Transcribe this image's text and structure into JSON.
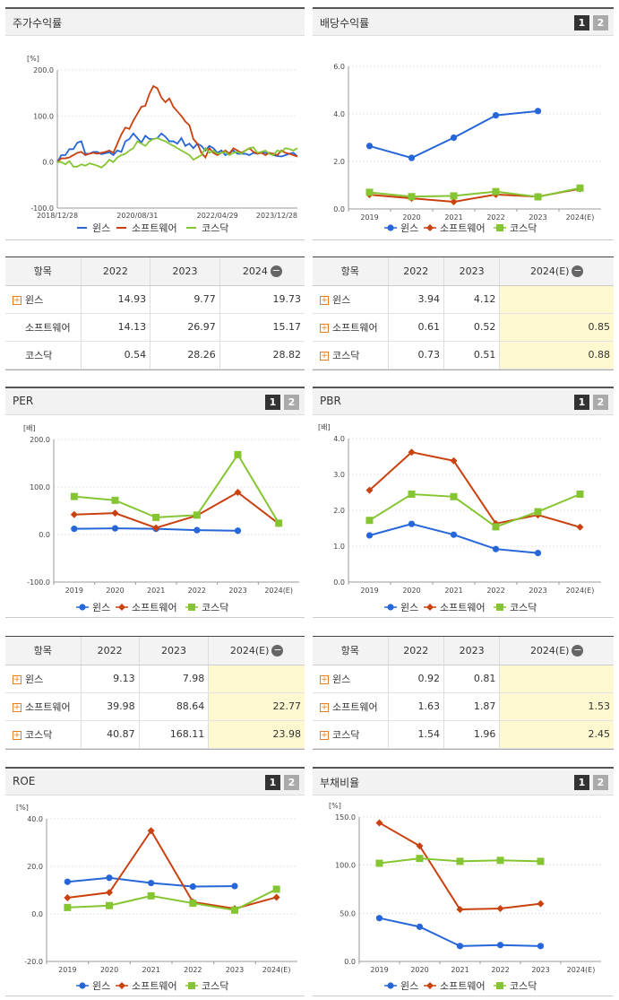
{
  "colors": {
    "wins": "#2666d9",
    "soft": "#c9410f",
    "kosdaq": "#86c532"
  },
  "legend": [
    "윈스",
    "소프트웨어",
    "코스닥"
  ],
  "charts": {
    "stock": {
      "title": "주가수익률",
      "unit": "[%]",
      "chart_data": {
        "type": "line",
        "title": "주가수익률",
        "ylabel": "[%]",
        "ylim": [
          -100,
          200
        ],
        "yticks": [
          "200.0",
          "100.0",
          "0.0",
          "-100.0"
        ],
        "xticks": [
          "2018/12/28",
          "2020/08/31",
          "2022/04/29",
          "2023/12/28"
        ],
        "series": [
          {
            "name": "윈스",
            "values": [
              0,
              15,
              15,
              28,
              28,
              42,
              45,
              18,
              18,
              22,
              22,
              17,
              19,
              21,
              15,
              25,
              22,
              45,
              50,
              62,
              52,
              42,
              57,
              50,
              50,
              52,
              62,
              55,
              45,
              45,
              40,
              52,
              35,
              40,
              30,
              40,
              35,
              25,
              35,
              30,
              20,
              25,
              15,
              20,
              25,
              18,
              18,
              18,
              15,
              20,
              18,
              22,
              20,
              18,
              15,
              13,
              12,
              15,
              18,
              20,
              12
            ]
          },
          {
            "name": "소프트웨어",
            "values": [
              0,
              8,
              8,
              10,
              15,
              20,
              22,
              15,
              18,
              20,
              18,
              20,
              22,
              25,
              20,
              40,
              60,
              75,
              72,
              90,
              105,
              120,
              122,
              148,
              165,
              160,
              140,
              130,
              138,
              120,
              110,
              100,
              88,
              80,
              50,
              40,
              20,
              10,
              30,
              20,
              15,
              20,
              25,
              18,
              30,
              25,
              20,
              25,
              30,
              22,
              18,
              20,
              15,
              20,
              18,
              15,
              25,
              20,
              18,
              15,
              12
            ]
          },
          {
            "name": "코스닥",
            "values": [
              0,
              0,
              -5,
              2,
              -10,
              -10,
              -5,
              -8,
              -3,
              -5,
              -8,
              -12,
              -5,
              5,
              0,
              10,
              15,
              18,
              25,
              30,
              45,
              40,
              35,
              45,
              50,
              52,
              48,
              45,
              40,
              35,
              30,
              25,
              20,
              15,
              5,
              10,
              15,
              30,
              20,
              25,
              18,
              20,
              22,
              15,
              20,
              22,
              18,
              25,
              30,
              32,
              20,
              22,
              25,
              18,
              15,
              25,
              22,
              30,
              28,
              25,
              30
            ]
          }
        ]
      }
    },
    "dividend": {
      "title": "배당수익률",
      "unit": "",
      "chart_data": {
        "type": "line",
        "title": "배당수익률",
        "ylim": [
          0,
          6
        ],
        "yticks": [
          "6.0",
          "4.0",
          "2.0",
          "0.0"
        ],
        "categories": [
          "2019",
          "2020",
          "2021",
          "2022",
          "2023",
          "2024(E)"
        ],
        "series": [
          {
            "name": "윈스",
            "values": [
              2.65,
              2.15,
              3.0,
              3.94,
              4.12,
              null
            ]
          },
          {
            "name": "소프트웨어",
            "values": [
              0.6,
              0.45,
              0.3,
              0.61,
              0.52,
              0.85
            ]
          },
          {
            "name": "코스닥",
            "values": [
              0.7,
              0.52,
              0.55,
              0.73,
              0.51,
              0.88
            ]
          }
        ]
      }
    },
    "per": {
      "title": "PER",
      "unit": "[배]",
      "chart_data": {
        "type": "line",
        "title": "PER",
        "ylabel": "[배]",
        "ylim": [
          -100,
          200
        ],
        "yticks": [
          "200.0",
          "100.0",
          "0.0",
          "-100.0"
        ],
        "categories": [
          "2019",
          "2020",
          "2021",
          "2022",
          "2023",
          "2024(E)"
        ],
        "series": [
          {
            "name": "윈스",
            "values": [
              12,
              13,
              12,
              9.13,
              7.98,
              null
            ]
          },
          {
            "name": "소프트웨어",
            "values": [
              42,
              45,
              14,
              39.98,
              88.64,
              22.77
            ]
          },
          {
            "name": "코스닥",
            "values": [
              80,
              72,
              36,
              40.87,
              168.11,
              23.98
            ]
          }
        ]
      }
    },
    "pbr": {
      "title": "PBR",
      "unit": "[배]",
      "chart_data": {
        "type": "line",
        "title": "PBR",
        "ylabel": "[배]",
        "ylim": [
          0,
          4
        ],
        "yticks": [
          "4.0",
          "3.0",
          "2.0",
          "1.0",
          "0.0"
        ],
        "categories": [
          "2019",
          "2020",
          "2021",
          "2022",
          "2023",
          "2024(E)"
        ],
        "series": [
          {
            "name": "윈스",
            "values": [
              1.3,
              1.62,
              1.32,
              0.92,
              0.81,
              null
            ]
          },
          {
            "name": "소프트웨어",
            "values": [
              2.56,
              3.62,
              3.38,
              1.63,
              1.87,
              1.53
            ]
          },
          {
            "name": "코스닥",
            "values": [
              1.72,
              2.45,
              2.38,
              1.54,
              1.96,
              2.45
            ]
          }
        ]
      }
    },
    "roe": {
      "title": "ROE",
      "unit": "[%]",
      "chart_data": {
        "type": "line",
        "title": "ROE",
        "ylabel": "[%]",
        "ylim": [
          -20,
          40
        ],
        "yticks": [
          "40.0",
          "20.0",
          "0.0",
          "-20.0"
        ],
        "categories": [
          "2019",
          "2020",
          "2021",
          "2022",
          "2023",
          "2024(E)"
        ],
        "series": [
          {
            "name": "윈스",
            "values": [
              13.5,
              15.2,
              13,
              11.5,
              11.7,
              null
            ]
          },
          {
            "name": "소프트웨어",
            "values": [
              6.8,
              9,
              35,
              5,
              2.2,
              7
            ]
          },
          {
            "name": "코스닥",
            "values": [
              2.7,
              3.5,
              7.6,
              4.5,
              1.6,
              10.4
            ]
          }
        ]
      }
    },
    "debt": {
      "title": "부채비율",
      "unit": "[%]",
      "chart_data": {
        "type": "line",
        "title": "부채비율",
        "ylabel": "[%]",
        "ylim": [
          0,
          150
        ],
        "yticks": [
          "150.0",
          "100.0",
          "50.0",
          "0.0"
        ],
        "categories": [
          "2019",
          "2020",
          "2021",
          "2022",
          "2023",
          "2024(E)"
        ],
        "series": [
          {
            "name": "윈스",
            "values": [
              45,
              36,
              16,
              17,
              16,
              null
            ]
          },
          {
            "name": "소프트웨어",
            "values": [
              144,
              120,
              54,
              55,
              60,
              null
            ]
          },
          {
            "name": "코스닥",
            "values": [
              102,
              107,
              104,
              105,
              104,
              null
            ]
          }
        ]
      }
    }
  },
  "tables": {
    "stock": {
      "headers": [
        "항목",
        "2022",
        "2023",
        "2024"
      ],
      "rows": [
        {
          "name": "윈스",
          "plus": true,
          "vals": [
            "14.93",
            "9.77",
            "19.73"
          ]
        },
        {
          "name": "소프트웨어",
          "plus": false,
          "vals": [
            "14.13",
            "26.97",
            "15.17"
          ]
        },
        {
          "name": "코스닥",
          "plus": false,
          "vals": [
            "0.54",
            "28.26",
            "28.82"
          ]
        }
      ]
    },
    "dividend": {
      "headers": [
        "항목",
        "2022",
        "2023",
        "2024(E)"
      ],
      "rows": [
        {
          "name": "윈스",
          "plus": true,
          "vals": [
            "3.94",
            "4.12",
            ""
          ]
        },
        {
          "name": "소프트웨어",
          "plus": true,
          "vals": [
            "0.61",
            "0.52",
            "0.85"
          ]
        },
        {
          "name": "코스닥",
          "plus": true,
          "vals": [
            "0.73",
            "0.51",
            "0.88"
          ]
        }
      ]
    },
    "per": {
      "headers": [
        "항목",
        "2022",
        "2023",
        "2024(E)"
      ],
      "rows": [
        {
          "name": "윈스",
          "plus": true,
          "vals": [
            "9.13",
            "7.98",
            ""
          ]
        },
        {
          "name": "소프트웨어",
          "plus": true,
          "vals": [
            "39.98",
            "88.64",
            "22.77"
          ]
        },
        {
          "name": "코스닥",
          "plus": true,
          "vals": [
            "40.87",
            "168.11",
            "23.98"
          ]
        }
      ]
    },
    "pbr": {
      "headers": [
        "항목",
        "2022",
        "2023",
        "2024(E)"
      ],
      "rows": [
        {
          "name": "윈스",
          "plus": true,
          "vals": [
            "0.92",
            "0.81",
            ""
          ]
        },
        {
          "name": "소프트웨어",
          "plus": true,
          "vals": [
            "1.63",
            "1.87",
            "1.53"
          ]
        },
        {
          "name": "코스닥",
          "plus": true,
          "vals": [
            "1.54",
            "1.96",
            "2.45"
          ]
        }
      ]
    }
  },
  "buttons": {
    "one": "1",
    "two": "2"
  }
}
